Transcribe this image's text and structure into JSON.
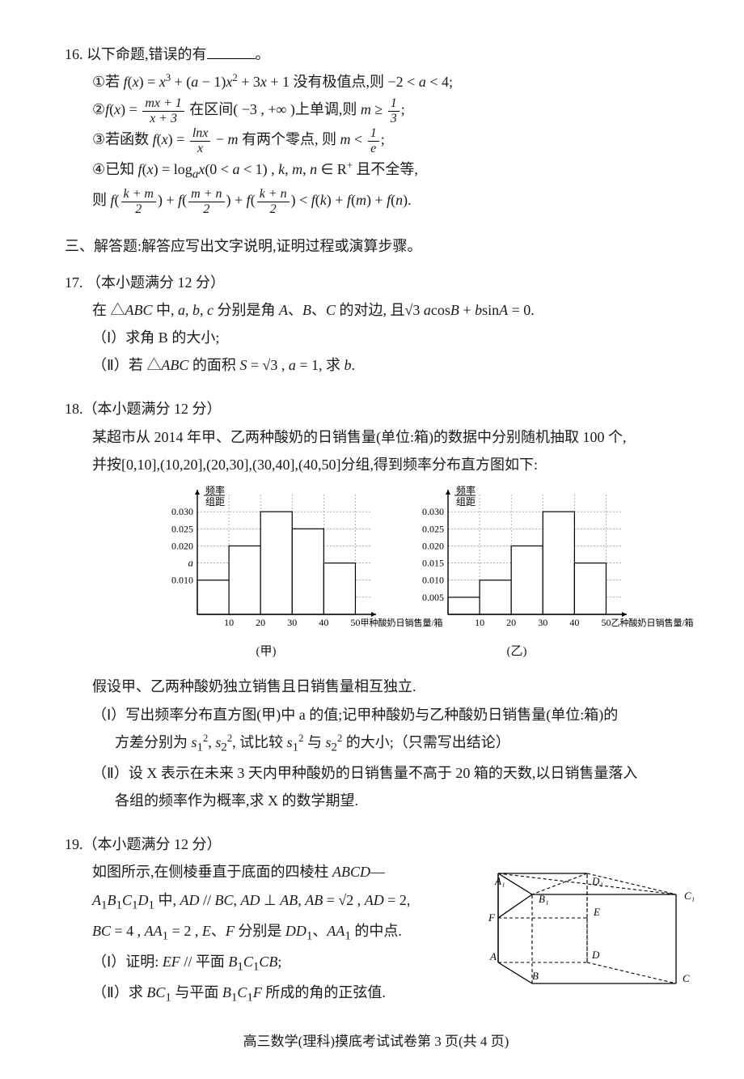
{
  "q16": {
    "stem": "16. 以下命题,错误的有",
    "period": "。",
    "items": [
      "①若 f(x) = x³ + (a − 1)x² + 3x + 1 没有极值点,则 −2 < a < 4;",
      "②f(x) = (mx + 1)/(x + 3) 在区间 ( −3 , +∞ ) 上单调,则 m ≥ 1/3;",
      "③若函数 f(x) = (ln x)/x − m 有两个零点,则 m < 1/e;",
      "④已知 f(x) = logₐx (0 < a < 1) , k, m, n ∈ R⁺ 且不全等,",
      "则 f((k+m)/2) + f((m+n)/2) + f((k+n)/2) < f(k) + f(m) + f(n)."
    ]
  },
  "section3": "三、解答题:解答应写出文字说明,证明过程或演算步骤。",
  "q17": {
    "title": "17. （本小题满分 12 分）",
    "line1": "在 △ABC 中, a, b, c 分别是角 A、B、C 的对边, 且 √3 a cosB + b sinA = 0.",
    "part1": "（Ⅰ）求角 B 的大小;",
    "part2": "（Ⅱ）若 △ABC 的面积 S = √3 , a = 1, 求 b."
  },
  "q18": {
    "title": "18.（本小题满分 12 分）",
    "line1": "某超市从 2014 年甲、乙两种酸奶的日销售量(单位:箱)的数据中分别随机抽取 100 个,",
    "line2": "并按[0,10],(10,20],(20,30],(30,40],(40,50]分组,得到频率分布直方图如下:",
    "chartA": {
      "type": "histogram",
      "ylabel_top": "频率",
      "ylabel_bot": "组距",
      "xlabel": "甲种酸奶日销售量/箱",
      "caption": "(甲)",
      "xticks": [
        10,
        20,
        30,
        40,
        50
      ],
      "yticks": [
        0.01,
        0.02,
        0.025,
        0.03
      ],
      "ytick_a": "a",
      "bars": [
        {
          "x": 0,
          "h": 0.01
        },
        {
          "x": 10,
          "h": 0.02
        },
        {
          "x": 20,
          "h": 0.03
        },
        {
          "x": 30,
          "h": 0.025
        },
        {
          "x": 40,
          "h": 0.015
        }
      ],
      "bar_fill": "#ffffff",
      "bar_stroke": "#000000",
      "grid_color": "#808080",
      "ylim": [
        0,
        0.035
      ],
      "xlim": [
        0,
        55
      ]
    },
    "chartB": {
      "type": "histogram",
      "ylabel_top": "频率",
      "ylabel_bot": "组距",
      "xlabel": "乙种酸奶日销售量/箱",
      "caption": "(乙)",
      "xticks": [
        10,
        20,
        30,
        40,
        50
      ],
      "yticks": [
        0.005,
        0.01,
        0.015,
        0.02,
        0.025,
        0.03
      ],
      "bars": [
        {
          "x": 0,
          "h": 0.005
        },
        {
          "x": 10,
          "h": 0.01
        },
        {
          "x": 20,
          "h": 0.02
        },
        {
          "x": 30,
          "h": 0.03
        },
        {
          "x": 40,
          "h": 0.015
        }
      ],
      "bar_fill": "#ffffff",
      "bar_stroke": "#000000",
      "grid_color": "#808080",
      "ylim": [
        0,
        0.035
      ],
      "xlim": [
        0,
        55
      ]
    },
    "assume": "假设甲、乙两种酸奶独立销售且日销售量相互独立.",
    "part1a": "（Ⅰ）写出频率分布直方图(甲)中 a 的值;记甲种酸奶与乙种酸奶日销售量(单位:箱)的",
    "part1b": "方差分别为 s₁², s₂², 试比较 s₁² 与 s₂² 的大小;（只需写出结论）",
    "part2a": "（Ⅱ）设 X 表示在未来 3 天内甲种酸奶的日销售量不高于 20 箱的天数,以日销售量落入",
    "part2b": "各组的频率作为概率,求 X 的数学期望."
  },
  "q19": {
    "title": "19.（本小题满分 12 分）",
    "line1": "如图所示,在侧棱垂直于底面的四棱柱 ABCD—",
    "line2": "A₁B₁C₁D₁ 中, AD // BC, AD ⊥ AB, AB = √2 , AD = 2,",
    "line3": "BC = 4 , AA₁ = 2 , E、F 分别是 DD₁、AA₁ 的中点.",
    "part1": "（Ⅰ）证明: EF // 平面 B₁C₁CB;",
    "part2": "（Ⅱ）求 BC₁ 与平面 B₁C₁F 所成的角的正弦值.",
    "fig": {
      "labels": {
        "A": "A",
        "B": "B",
        "C": "C",
        "D": "D",
        "A1": "A₁",
        "B1": "B₁",
        "C1": "C₁",
        "D1": "D₁",
        "E": "E",
        "F": "F"
      },
      "pts": {
        "A1": [
          20,
          140
        ],
        "D1": [
          130,
          140
        ],
        "B1": [
          62,
          114
        ],
        "C1": [
          240,
          114
        ],
        "A": [
          20,
          30
        ],
        "D": [
          130,
          30
        ],
        "B": [
          62,
          4
        ],
        "C": [
          240,
          4
        ],
        "F": [
          20,
          85
        ],
        "E": [
          130,
          85
        ]
      },
      "solid": [
        [
          "A1",
          "D1"
        ],
        [
          "A1",
          "B1"
        ],
        [
          "A1",
          "A"
        ],
        [
          "A",
          "B"
        ],
        [
          "B",
          "C"
        ],
        [
          "C",
          "C1"
        ],
        [
          "B1",
          "C1"
        ],
        [
          "A",
          "F"
        ],
        [
          "F",
          "A1"
        ],
        [
          "F",
          "B1"
        ]
      ],
      "dashed": [
        [
          "B",
          "B1"
        ],
        [
          "A",
          "D"
        ],
        [
          "D",
          "C"
        ],
        [
          "D",
          "D1"
        ],
        [
          "D1",
          "C1"
        ],
        [
          "D1",
          "B1"
        ],
        [
          "E",
          "D"
        ],
        [
          "E",
          "D1"
        ],
        [
          "F",
          "E"
        ],
        [
          "A1",
          "C1"
        ]
      ],
      "stroke": "#000000"
    }
  },
  "footer": "高三数学(理科)摸底考试试卷第 3 页(共 4 页)"
}
